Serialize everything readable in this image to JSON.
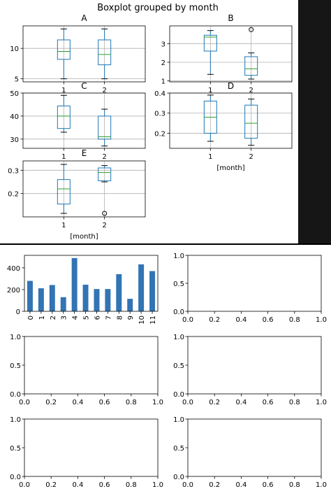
{
  "colors": {
    "box": "#1f77b4",
    "median": "#2ca02c",
    "whisker": "#000000",
    "grid": "#b0b0b0",
    "bar": "#3274b4",
    "right_strip": "#161616",
    "separator": "#000000"
  },
  "chart_data": [
    {
      "type": "boxplot",
      "suptitle": "Boxplot grouped by month",
      "title": "A",
      "xlabel": "",
      "categories": [
        "1",
        "2"
      ],
      "ylim": [
        4.5,
        13.7
      ],
      "yticks": [
        5,
        10
      ],
      "grid": true,
      "boxes": [
        {
          "whislo": 5.0,
          "q1": 8.2,
          "med": 9.5,
          "q3": 11.4,
          "whishi": 13.2,
          "fliers": []
        },
        {
          "whislo": 5.0,
          "q1": 7.3,
          "med": 9.0,
          "q3": 11.4,
          "whishi": 13.2,
          "fliers": []
        }
      ]
    },
    {
      "type": "boxplot",
      "title": "B",
      "xlabel": "",
      "categories": [
        "1",
        "2"
      ],
      "ylim": [
        0.95,
        3.95
      ],
      "yticks": [
        1,
        2,
        3
      ],
      "grid": true,
      "boxes": [
        {
          "whislo": 1.35,
          "q1": 2.6,
          "med": 3.35,
          "q3": 3.45,
          "whishi": 3.7,
          "fliers": []
        },
        {
          "whislo": 1.1,
          "q1": 1.3,
          "med": 1.65,
          "q3": 2.3,
          "whishi": 2.5,
          "fliers": [
            3.75
          ]
        }
      ]
    },
    {
      "type": "boxplot",
      "title": "C",
      "xlabel": "",
      "categories": [
        "1",
        "2"
      ],
      "ylim": [
        26,
        50
      ],
      "yticks": [
        30,
        40,
        50
      ],
      "grid": true,
      "boxes": [
        {
          "whislo": 33.0,
          "q1": 34.6,
          "med": 40.0,
          "q3": 44.4,
          "whishi": 49.0,
          "fliers": []
        },
        {
          "whislo": 27.0,
          "q1": 30.0,
          "med": 31.0,
          "q3": 40.0,
          "whishi": 43.0,
          "fliers": []
        }
      ]
    },
    {
      "type": "boxplot",
      "title": "D",
      "xlabel": "[month]",
      "categories": [
        "1",
        "2"
      ],
      "ylim": [
        0.125,
        0.4
      ],
      "yticks": [
        0.2,
        0.3,
        0.4
      ],
      "grid": true,
      "boxes": [
        {
          "whislo": 0.16,
          "q1": 0.2,
          "med": 0.28,
          "q3": 0.36,
          "whishi": 0.39,
          "fliers": []
        },
        {
          "whislo": 0.14,
          "q1": 0.175,
          "med": 0.25,
          "q3": 0.34,
          "whishi": 0.37,
          "fliers": []
        }
      ]
    },
    {
      "type": "boxplot",
      "title": "E",
      "xlabel": "[month]",
      "categories": [
        "1",
        "2"
      ],
      "ylim": [
        0.1,
        0.34
      ],
      "yticks": [
        0.2,
        0.3
      ],
      "grid": true,
      "boxes": [
        {
          "whislo": 0.115,
          "q1": 0.155,
          "med": 0.22,
          "q3": 0.26,
          "whishi": 0.325,
          "fliers": []
        },
        {
          "whislo": 0.25,
          "q1": 0.255,
          "med": 0.29,
          "q3": 0.31,
          "whishi": 0.32,
          "fliers": [
            0.115
          ]
        }
      ]
    },
    {
      "type": "bar",
      "title": "",
      "xlabel": "",
      "ylabel": "",
      "categories": [
        "0",
        "1",
        "2",
        "3",
        "4",
        "5",
        "6",
        "7",
        "8",
        "9",
        "10",
        "11"
      ],
      "values": [
        280,
        212,
        242,
        130,
        490,
        245,
        205,
        205,
        342,
        115,
        432,
        370
      ],
      "ylim": [
        0,
        515
      ],
      "yticks": [
        0,
        200,
        400
      ]
    },
    {
      "type": "empty",
      "xlim": [
        0,
        1
      ],
      "ylim": [
        0,
        1
      ],
      "xticks": [
        "0.0",
        "0.2",
        "0.4",
        "0.6",
        "0.8",
        "1.0"
      ],
      "yticks": [
        "0.0",
        "0.5",
        "1.0"
      ]
    },
    {
      "type": "empty",
      "xlim": [
        0,
        1
      ],
      "ylim": [
        0,
        1
      ],
      "xticks": [
        "0.0",
        "0.2",
        "0.4",
        "0.6",
        "0.8",
        "1.0"
      ],
      "yticks": [
        "0.0",
        "0.5",
        "1.0"
      ]
    },
    {
      "type": "empty",
      "xlim": [
        0,
        1
      ],
      "ylim": [
        0,
        1
      ],
      "xticks": [
        "0.0",
        "0.2",
        "0.4",
        "0.6",
        "0.8",
        "1.0"
      ],
      "yticks": [
        "0.0",
        "0.5",
        "1.0"
      ]
    },
    {
      "type": "empty",
      "xlim": [
        0,
        1
      ],
      "ylim": [
        0,
        1
      ],
      "xticks": [
        "0.0",
        "0.2",
        "0.4",
        "0.6",
        "0.8",
        "1.0"
      ],
      "yticks": [
        "0.0",
        "0.5",
        "1.0"
      ]
    },
    {
      "type": "empty",
      "xlim": [
        0,
        1
      ],
      "ylim": [
        0,
        1
      ],
      "xticks": [
        "0.0",
        "0.2",
        "0.4",
        "0.6",
        "0.8",
        "1.0"
      ],
      "yticks": [
        "0.0",
        "0.5",
        "1.0"
      ]
    }
  ]
}
